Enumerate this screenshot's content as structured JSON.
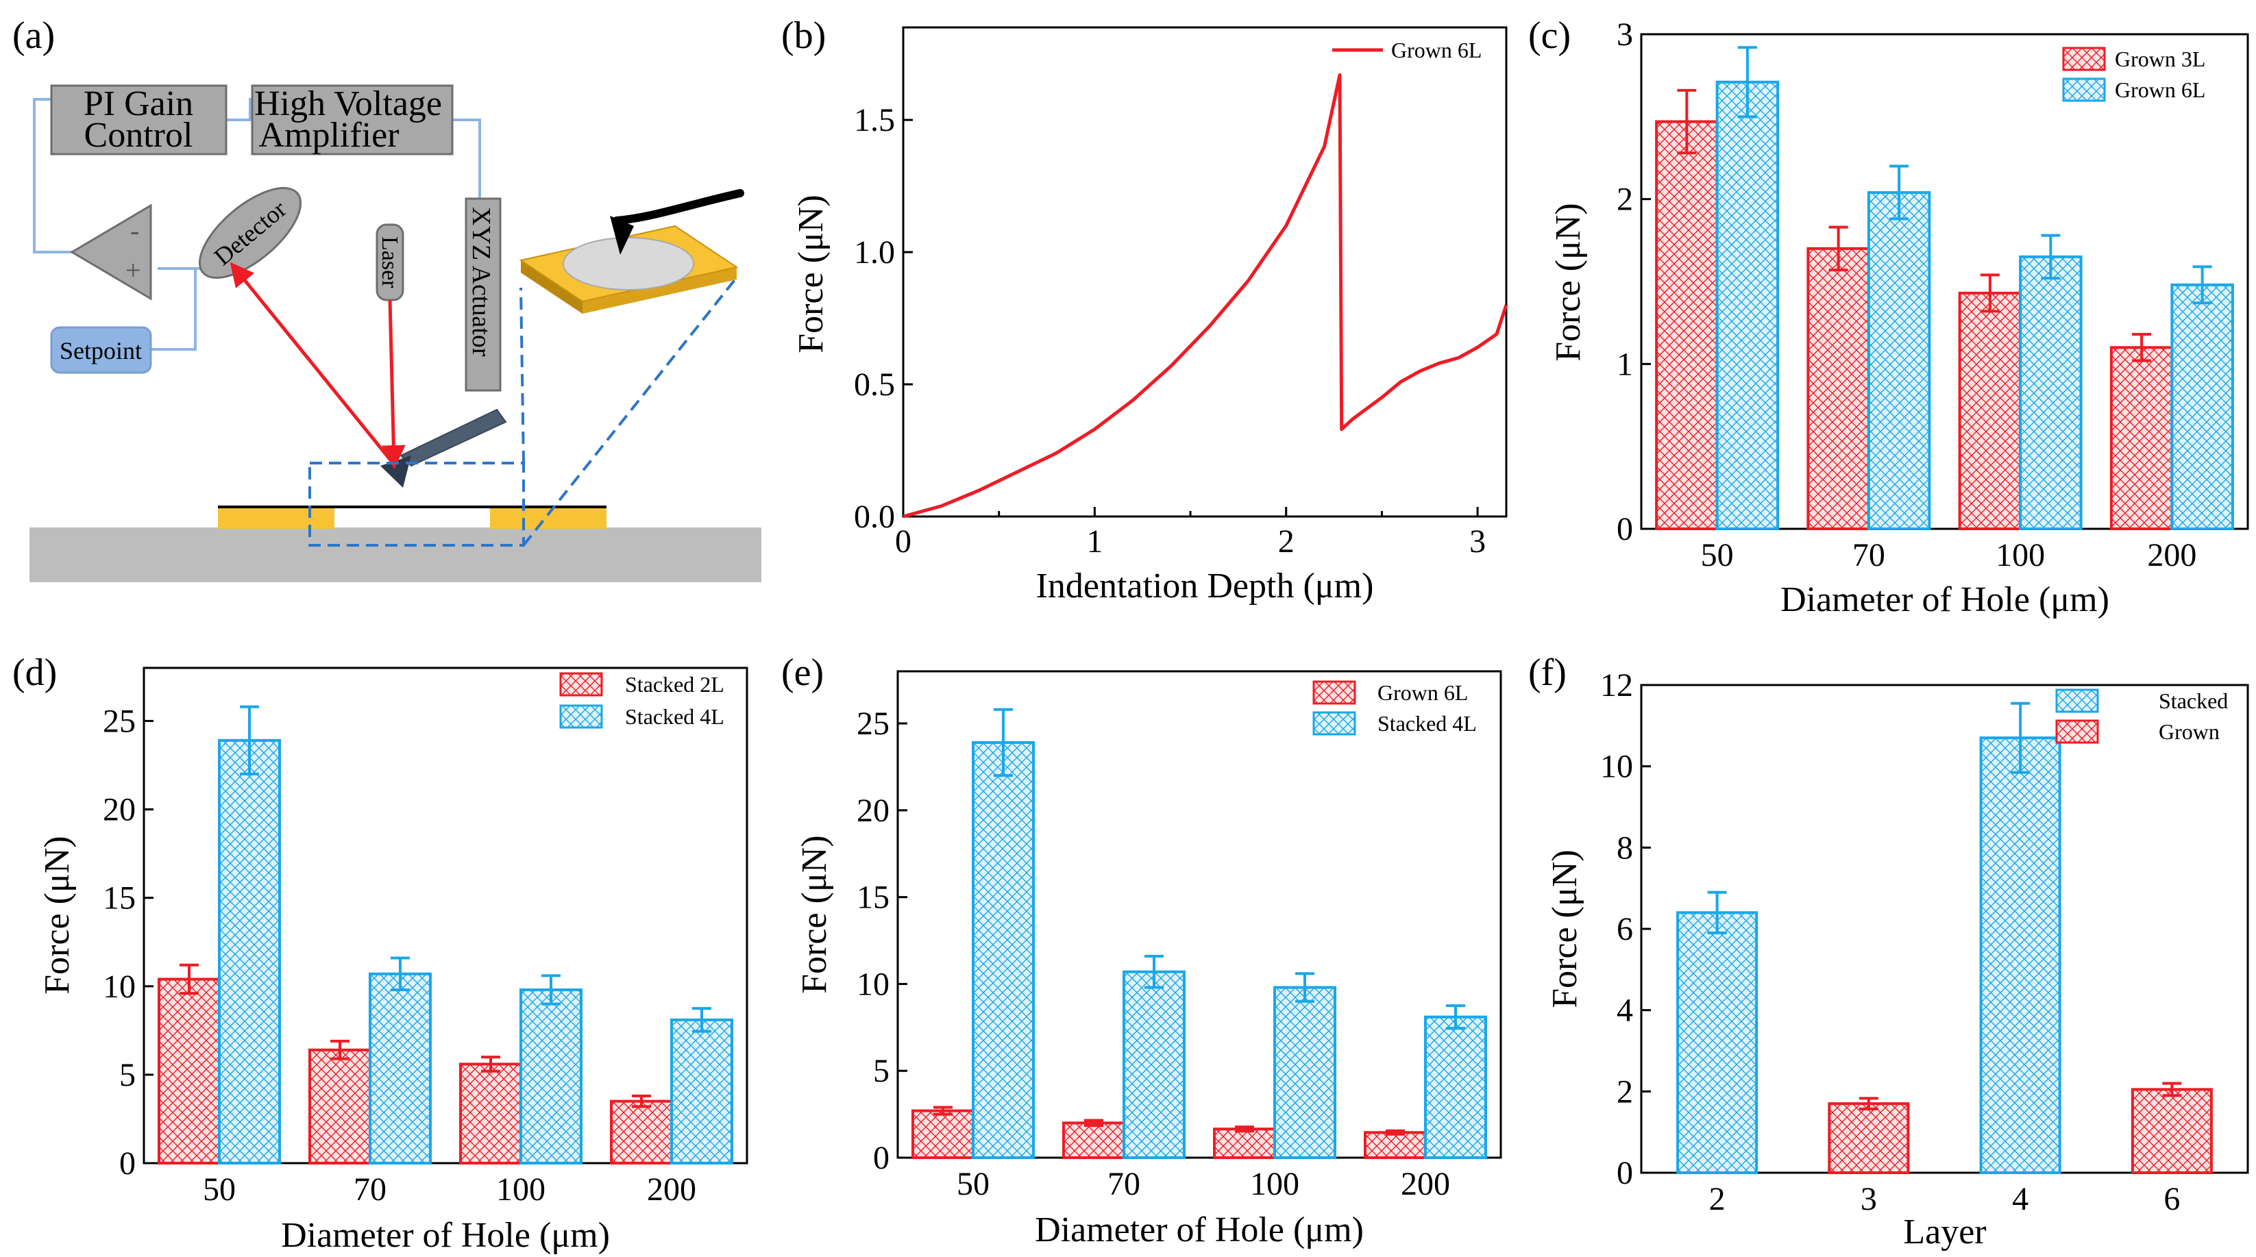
{
  "colors": {
    "red": "#ee1c25",
    "blue": "#1aa7e8",
    "red_fill": "#f6b5b6",
    "blue_fill": "#a6dff6",
    "gold": "#f7c233",
    "gray_box": "#a8a8a8",
    "setpoint": "#8fb4e3",
    "dash": "#2e75c7"
  },
  "diagram": {
    "panel_label": "(a)",
    "pi_gain": [
      "PI Gain",
      "Control"
    ],
    "high_voltage": [
      "High Voltage",
      "Amplifier"
    ],
    "detector": "Detector",
    "laser": "Laser",
    "xyz_actuator": "XYZ Actuator",
    "setpoint": "Setpoint",
    "minus_sign": "-",
    "plus_sign": "+"
  },
  "chart_data": [
    {
      "id": "b",
      "panel_label": "(b)",
      "type": "line",
      "xlabel": "Indentation Depth (μm)",
      "ylabel": "Force (μN)",
      "xlim": [
        0,
        3.15
      ],
      "ylim": [
        0,
        1.85
      ],
      "xticks": [
        0,
        1,
        2,
        3
      ],
      "xtick_labels": [
        "0",
        "1",
        "2",
        "3"
      ],
      "yticks": [
        0,
        0.5,
        1.0,
        1.5
      ],
      "ytick_labels": [
        "0.0",
        "0.5",
        "1.0",
        "1.5"
      ],
      "legend": [
        "Grown 6L"
      ],
      "legend_position": "top-right",
      "series": [
        {
          "name": "Grown 6L",
          "color": "red",
          "x": [
            0,
            0.2,
            0.4,
            0.6,
            0.8,
            1.0,
            1.2,
            1.4,
            1.6,
            1.8,
            2.0,
            2.2,
            2.28,
            2.29,
            2.35,
            2.5,
            2.6,
            2.7,
            2.8,
            2.9,
            3.0,
            3.1,
            3.15
          ],
          "y": [
            0,
            0.04,
            0.1,
            0.17,
            0.24,
            0.33,
            0.44,
            0.57,
            0.72,
            0.89,
            1.1,
            1.4,
            1.67,
            0.33,
            0.37,
            0.45,
            0.51,
            0.55,
            0.58,
            0.6,
            0.64,
            0.69,
            0.8
          ]
        }
      ]
    },
    {
      "id": "c",
      "panel_label": "(c)",
      "type": "bar",
      "xlabel": "Diameter of Hole (μm)",
      "ylabel": "Force (μN)",
      "categories": [
        "50",
        "70",
        "100",
        "200"
      ],
      "ylim": [
        0,
        3
      ],
      "yticks": [
        0,
        1,
        2,
        3
      ],
      "ytick_labels": [
        "0",
        "1",
        "2",
        "3"
      ],
      "legend_position": "top-right",
      "series": [
        {
          "name": "Grown 3L",
          "color": "red",
          "values": [
            2.47,
            1.7,
            1.43,
            1.1
          ],
          "errors": [
            0.19,
            0.13,
            0.11,
            0.08
          ]
        },
        {
          "name": "Grown 6L",
          "color": "blue",
          "values": [
            2.71,
            2.04,
            1.65,
            1.48
          ],
          "errors": [
            0.21,
            0.16,
            0.13,
            0.11
          ]
        }
      ]
    },
    {
      "id": "d",
      "panel_label": "(d)",
      "type": "bar",
      "xlabel": "Diameter of Hole (μm)",
      "ylabel": "Force (μN)",
      "categories": [
        "50",
        "70",
        "100",
        "200"
      ],
      "ylim": [
        0,
        28
      ],
      "yticks": [
        0,
        5,
        10,
        15,
        20,
        25
      ],
      "ytick_labels": [
        "0",
        "5",
        "10",
        "15",
        "20",
        "25"
      ],
      "legend_position": "top-right",
      "series": [
        {
          "name": "Stacked 2L",
          "color": "red",
          "values": [
            10.4,
            6.4,
            5.6,
            3.5
          ],
          "errors": [
            0.8,
            0.5,
            0.4,
            0.3
          ]
        },
        {
          "name": "Stacked 4L",
          "color": "blue",
          "values": [
            23.9,
            10.7,
            9.8,
            8.1
          ],
          "errors": [
            1.9,
            0.9,
            0.8,
            0.65
          ]
        }
      ]
    },
    {
      "id": "e",
      "panel_label": "(e)",
      "type": "bar",
      "xlabel": "Diameter of Hole (μm)",
      "ylabel": "Force (μN)",
      "categories": [
        "50",
        "70",
        "100",
        "200"
      ],
      "ylim": [
        0,
        28
      ],
      "yticks": [
        0,
        5,
        10,
        15,
        20,
        25
      ],
      "ytick_labels": [
        "0",
        "5",
        "10",
        "15",
        "20",
        "25"
      ],
      "legend_position": "top-right",
      "series": [
        {
          "name": "Grown 6L",
          "color": "red",
          "values": [
            2.7,
            2.0,
            1.65,
            1.45
          ],
          "errors": [
            0.2,
            0.15,
            0.12,
            0.1
          ]
        },
        {
          "name": "Stacked 4L",
          "color": "blue",
          "values": [
            23.9,
            10.7,
            9.8,
            8.1
          ],
          "errors": [
            1.9,
            0.9,
            0.8,
            0.65
          ]
        }
      ]
    },
    {
      "id": "f",
      "panel_label": "(f)",
      "type": "bar",
      "xlabel": "Layer",
      "ylabel": "Force (μN)",
      "categories": [
        "2",
        "3",
        "4",
        "6"
      ],
      "ylim": [
        0,
        12
      ],
      "yticks": [
        0,
        2,
        4,
        6,
        8,
        10,
        12
      ],
      "ytick_labels": [
        "0",
        "2",
        "4",
        "6",
        "8",
        "10",
        "12"
      ],
      "legend_position": "top-right",
      "legend": [
        "Stacked",
        "Grown"
      ],
      "legend_colors": [
        "blue",
        "red"
      ],
      "bars": [
        {
          "category": "2",
          "value": 6.4,
          "error": 0.5,
          "color": "blue"
        },
        {
          "category": "3",
          "value": 1.7,
          "error": 0.13,
          "color": "red"
        },
        {
          "category": "4",
          "value": 10.7,
          "error": 0.85,
          "color": "blue"
        },
        {
          "category": "6",
          "value": 2.05,
          "error": 0.15,
          "color": "red"
        }
      ]
    }
  ]
}
